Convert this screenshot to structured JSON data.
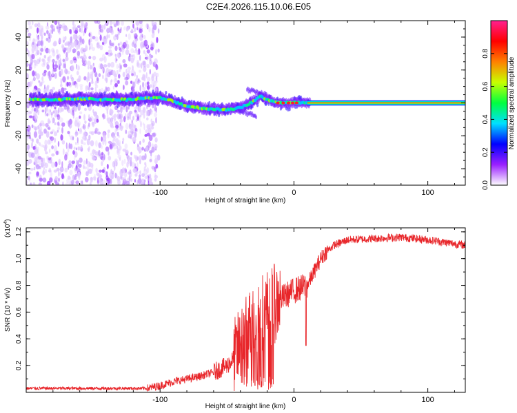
{
  "title": "C2E4.2026.115.10.06.E05",
  "chart_data": [
    {
      "type": "heatmap",
      "name": "spectrogram",
      "xlabel": "Height of straight line (km)",
      "ylabel": "Frequency (Hz)",
      "xlim": [
        -200,
        128
      ],
      "ylim": [
        -50,
        50
      ],
      "xticks": [
        -100,
        0,
        100
      ],
      "xtick_labels": [
        "-100",
        "0",
        "100"
      ],
      "yticks": [
        -40,
        -20,
        0,
        20,
        40
      ],
      "ytick_labels": [
        "-40",
        "-20",
        "0",
        "20",
        "40"
      ],
      "noise_region_x": [
        -200,
        -101
      ],
      "ridge_line": {
        "x": [
          -197,
          -180,
          -160,
          -140,
          -125,
          -110,
          -100,
          -90,
          -80,
          -70,
          -60,
          -50,
          -40,
          -35,
          -30,
          -25,
          -20,
          -15,
          -10,
          -5,
          0,
          10,
          20,
          128
        ],
        "freq_hz": [
          2,
          2,
          2.5,
          2,
          2,
          3,
          3,
          1,
          -2,
          -3,
          -4,
          -4,
          -3,
          -1,
          1,
          4,
          2,
          1,
          0,
          0,
          0,
          0,
          0,
          0
        ]
      },
      "colorbar": {
        "label": "Normalized spectral amplitude",
        "range": [
          0,
          1
        ],
        "ticks": [
          0.0,
          0.2,
          0.4,
          0.6,
          0.8
        ],
        "tick_labels": [
          "0.0",
          "0.2",
          "0.4",
          "0.6",
          "0.8"
        ],
        "colormap": [
          "#ffffff",
          "#9a20ff",
          "#0000ff",
          "#00e0ff",
          "#00ff40",
          "#c8ff00",
          "#ff8000",
          "#ff0000",
          "#ff2090"
        ]
      }
    },
    {
      "type": "line",
      "name": "snr",
      "xlabel": "Height of straight line (km)",
      "ylabel": "SNR (10 * v/v)",
      "y_multiplier_label": "(x10",
      "y_multiplier_exp": "4",
      "y_multiplier_close": ")",
      "xlim": [
        -200,
        128
      ],
      "ylim": [
        0,
        1.23
      ],
      "xticks": [
        -100,
        0,
        100
      ],
      "xtick_labels": [
        "-100",
        "0",
        "100"
      ],
      "yticks": [
        0.2,
        0.4,
        0.6,
        0.8,
        1.0,
        1.2
      ],
      "ytick_labels": [
        "0.2",
        "0.4",
        "0.6",
        "0.8",
        "1.0",
        "1.2"
      ],
      "color": "#e8262a",
      "series": {
        "x": [
          -200,
          -150,
          -110,
          -100,
          -90,
          -80,
          -70,
          -60,
          -50,
          -45,
          -40,
          -35,
          -30,
          -25,
          -20,
          -15,
          -10,
          -5,
          0,
          10,
          15,
          20,
          25,
          30,
          40,
          60,
          80,
          100,
          128
        ],
        "y": [
          0.03,
          0.03,
          0.03,
          0.05,
          0.08,
          0.1,
          0.12,
          0.15,
          0.2,
          0.25,
          0.35,
          0.45,
          0.55,
          0.6,
          0.63,
          0.66,
          0.7,
          0.73,
          0.76,
          0.8,
          0.9,
          1.0,
          1.06,
          1.1,
          1.14,
          1.15,
          1.16,
          1.14,
          1.1
        ]
      }
    }
  ]
}
